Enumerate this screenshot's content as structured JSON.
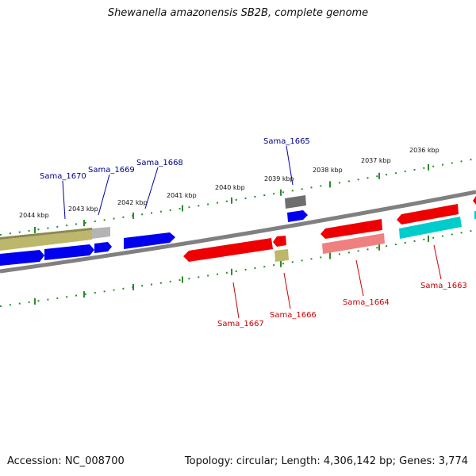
{
  "title": "Shewanella amazonensis SB2B, complete genome",
  "footer": {
    "accession": "Accession: NC_008700",
    "summary": "Topology: circular; Length: 4,306,142 bp; Genes: 3,774"
  },
  "colors": {
    "forward_label": "#00008b",
    "reverse_label": "#cc0000",
    "tick": "#2a8a2a",
    "backbone": "#808080",
    "blue": "#0000ee",
    "red": "#ee0000",
    "olive": "#bcb76a",
    "gray": "#6e6e6e",
    "pink": "#f08080",
    "cyan": "#00cccc",
    "silver": "#b4b4b4"
  },
  "scale_labels": [
    "2044 kbp",
    "2043 kbp",
    "2042 kbp",
    "2041 kbp",
    "2040 kbp",
    "2039 kbp",
    "2038 kbp",
    "2037 kbp",
    "2036 kbp"
  ],
  "gene_labels": {
    "sama_1670": "Sama_1670",
    "sama_1669": "Sama_1669",
    "sama_1668": "Sama_1668",
    "sama_1665": "Sama_1665",
    "sama_1667": "Sama_1667",
    "sama_1666": "Sama_1666",
    "sama_1664": "Sama_1664",
    "sama_1663": "Sama_1663"
  }
}
